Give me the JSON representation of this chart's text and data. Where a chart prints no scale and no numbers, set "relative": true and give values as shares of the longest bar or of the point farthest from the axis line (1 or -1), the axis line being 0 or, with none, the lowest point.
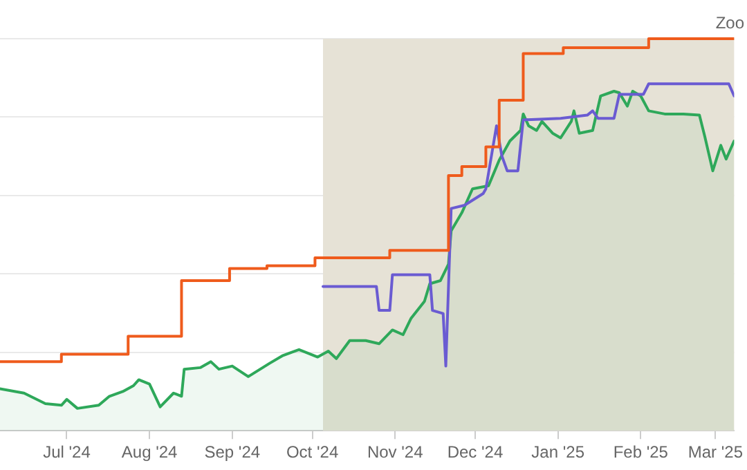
{
  "chart_data": {
    "type": "line",
    "relative": true,
    "grid": "y",
    "legend": false,
    "marker": "none",
    "tick_labels": "x",
    "xlim": [
      "2024-06-06",
      "2025-03-08"
    ],
    "xticks": [
      {
        "value": "2024-07-01",
        "label": "Jul '24"
      },
      {
        "value": "2024-08-01",
        "label": "Aug '24"
      },
      {
        "value": "2024-09-01",
        "label": "Sep '24"
      },
      {
        "value": "2024-10-01",
        "label": "Oct '24"
      },
      {
        "value": "2024-11-01",
        "label": "Nov '24"
      },
      {
        "value": "2024-12-01",
        "label": "Dec '24"
      },
      {
        "value": "2025-01-01",
        "label": "Jan '25"
      },
      {
        "value": "2025-02-01",
        "label": "Feb '25"
      },
      {
        "value": "2025-03-01",
        "label": "Mar '25"
      }
    ],
    "bands": [
      {
        "axis": "x",
        "from": "2024-10-05",
        "to": "2025-03-08",
        "color": "#e6e2d6"
      }
    ],
    "annotations": [
      "Zoo"
    ],
    "series": [
      {
        "type": "step",
        "color": "#ef5b1c",
        "x": [
          "2024-06-06",
          "2024-06-29",
          "2024-07-24",
          "2024-08-13",
          "2024-08-31",
          "2024-09-14",
          "2024-10-02",
          "2024-10-30",
          "2024-11-21",
          "2024-11-26",
          "2024-12-05",
          "2024-12-10",
          "2024-12-19",
          "2025-01-03",
          "2025-02-04",
          "2025-03-08"
        ],
        "values": [
          0.176,
          0.195,
          0.241,
          0.383,
          0.414,
          0.421,
          0.441,
          0.46,
          0.651,
          0.674,
          0.724,
          0.843,
          0.962,
          0.977,
          1,
          1
        ]
      },
      {
        "color": "#6a5bd2",
        "x": [
          "2024-10-05",
          "2024-10-25",
          "2024-10-26",
          "2024-10-30",
          "2024-10-31",
          "2024-11-14",
          "2024-11-15",
          "2024-11-19",
          "2024-11-20",
          "2024-11-22",
          "2024-11-27",
          "2024-12-04",
          "2024-12-05",
          "2024-12-09",
          "2024-12-11",
          "2024-12-13",
          "2024-12-17",
          "2024-12-19",
          "2025-01-02",
          "2025-01-12",
          "2025-01-14",
          "2025-01-16",
          "2025-01-22",
          "2025-01-24",
          "2025-02-02",
          "2025-02-04",
          "2025-03-06",
          "2025-03-08"
        ],
        "values": [
          0.368,
          0.368,
          0.307,
          0.307,
          0.398,
          0.398,
          0.307,
          0.299,
          0.165,
          0.567,
          0.575,
          0.605,
          0.617,
          0.778,
          0.701,
          0.663,
          0.663,
          0.793,
          0.797,
          0.805,
          0.816,
          0.797,
          0.797,
          0.858,
          0.858,
          0.885,
          0.885,
          0.854
        ]
      },
      {
        "type": "area",
        "color": "#2ea85a",
        "x": [
          "2024-06-06",
          "2024-06-15",
          "2024-06-23",
          "2024-06-29",
          "2024-07-01",
          "2024-07-05",
          "2024-07-13",
          "2024-07-17",
          "2024-07-22",
          "2024-07-26",
          "2024-07-28",
          "2024-08-01",
          "2024-08-05",
          "2024-08-10",
          "2024-08-13",
          "2024-08-14",
          "2024-08-20",
          "2024-08-24",
          "2024-08-27",
          "2024-09-01",
          "2024-09-07",
          "2024-09-15",
          "2024-09-20",
          "2024-09-26",
          "2024-10-03",
          "2024-10-07",
          "2024-10-10",
          "2024-10-15",
          "2024-10-21",
          "2024-10-26",
          "2024-10-31",
          "2024-11-04",
          "2024-11-07",
          "2024-11-12",
          "2024-11-14",
          "2024-11-18",
          "2024-11-21",
          "2024-11-22",
          "2024-11-26",
          "2024-11-30",
          "2024-12-06",
          "2024-12-10",
          "2024-12-14",
          "2024-12-18",
          "2024-12-19",
          "2024-12-21",
          "2024-12-24",
          "2024-12-26",
          "2024-12-30",
          "2025-01-02",
          "2025-01-06",
          "2025-01-07",
          "2025-01-09",
          "2025-01-14",
          "2025-01-17",
          "2025-01-22",
          "2025-01-24",
          "2025-01-27",
          "2025-01-29",
          "2025-02-01",
          "2025-02-04",
          "2025-02-10",
          "2025-02-17",
          "2025-02-23",
          "2025-02-25",
          "2025-02-28",
          "2025-03-03",
          "2025-03-05",
          "2025-03-08"
        ],
        "values": [
          0.107,
          0.096,
          0.069,
          0.065,
          0.08,
          0.057,
          0.065,
          0.088,
          0.1,
          0.115,
          0.13,
          0.119,
          0.061,
          0.096,
          0.088,
          0.157,
          0.161,
          0.176,
          0.157,
          0.165,
          0.138,
          0.172,
          0.192,
          0.207,
          0.188,
          0.203,
          0.184,
          0.23,
          0.23,
          0.222,
          0.257,
          0.245,
          0.287,
          0.33,
          0.375,
          0.383,
          0.425,
          0.51,
          0.556,
          0.617,
          0.625,
          0.69,
          0.739,
          0.766,
          0.808,
          0.778,
          0.766,
          0.789,
          0.759,
          0.747,
          0.789,
          0.816,
          0.759,
          0.766,
          0.854,
          0.866,
          0.862,
          0.828,
          0.866,
          0.854,
          0.816,
          0.808,
          0.808,
          0.805,
          0.751,
          0.663,
          0.728,
          0.693,
          0.739
        ]
      }
    ]
  }
}
